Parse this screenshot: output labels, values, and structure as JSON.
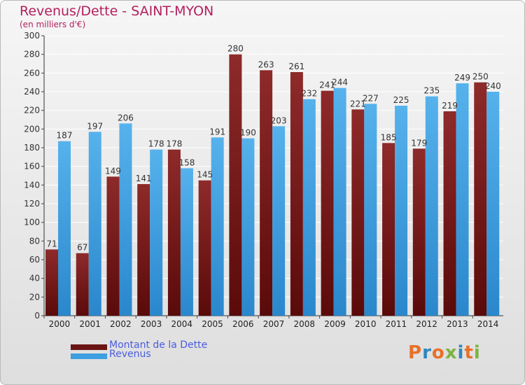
{
  "chart_data": {
    "type": "bar",
    "title": "Revenus/Dette - SAINT-MYON",
    "subtitle": "(en milliers d'€)",
    "categories": [
      "2000",
      "2001",
      "2002",
      "2003",
      "2004",
      "2005",
      "2006",
      "2007",
      "2008",
      "2009",
      "2010",
      "2011",
      "2012",
      "2013",
      "2014"
    ],
    "series": [
      {
        "name": "Montant de la Dette",
        "color": "#7a1a1a",
        "values": [
          71,
          67,
          149,
          141,
          178,
          145,
          280,
          263,
          261,
          241,
          221,
          185,
          179,
          219,
          250
        ]
      },
      {
        "name": "Revenus",
        "color": "#3d9ee0",
        "values": [
          187,
          197,
          206,
          178,
          158,
          191,
          190,
          203,
          232,
          244,
          227,
          225,
          235,
          249,
          240
        ]
      }
    ],
    "ylim": [
      0,
      300
    ],
    "yticks": [
      0,
      20,
      40,
      60,
      80,
      100,
      120,
      140,
      160,
      180,
      200,
      220,
      240,
      260,
      280,
      300
    ],
    "xlabel": "",
    "ylabel": "",
    "grid": true,
    "legend_position": "bottom-left"
  },
  "brand": {
    "logo_text": "Proxiti",
    "logo_colors": [
      "#e8702a",
      "#2e86c1",
      "#e8702a",
      "#7cb342",
      "#2e86c1",
      "#e8702a",
      "#7cb342"
    ]
  }
}
